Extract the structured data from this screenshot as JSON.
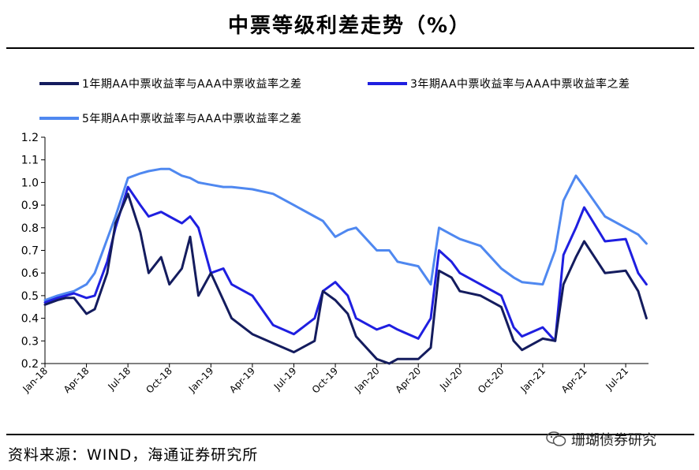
{
  "title": "中票等级利差走势（%）",
  "source": "资料来源：WIND，海通证券研究所",
  "watermark": "珊瑚债券研究",
  "colors": {
    "s1": "#141C5E",
    "s2": "#1F1FE0",
    "s3": "#4F88F0"
  },
  "chart_data": {
    "type": "line",
    "title": "中票等级利差走势（%）",
    "ylim": [
      0.2,
      1.2
    ],
    "yticks": [
      "0.2",
      "0.3",
      "0.4",
      "0.5",
      "0.6",
      "0.7",
      "0.8",
      "0.9",
      "1.0",
      "1.1",
      "1.2"
    ],
    "xticks": [
      "Jan-18",
      "Apr-18",
      "Jul-18",
      "Oct-18",
      "Jan-19",
      "Apr-19",
      "Jul-19",
      "Oct-19",
      "Jan-20",
      "Apr-20",
      "Jul-20",
      "Oct-20",
      "Jan-21",
      "Apr-21",
      "Jul-21"
    ],
    "grid": false,
    "legend_position": "top",
    "series": [
      {
        "name": "1年期AA中票收益率与AAA中票收益率之差",
        "x": [
          0,
          0.3,
          0.5,
          0.7,
          1.0,
          1.2,
          1.5,
          1.7,
          2.0,
          2.3,
          2.5,
          2.8,
          3.0,
          3.3,
          3.5,
          3.7,
          4.0,
          4.3,
          4.5,
          5.0,
          5.5,
          6.0,
          6.5,
          6.7,
          7.0,
          7.3,
          7.5,
          8.0,
          8.3,
          8.5,
          9.0,
          9.3,
          9.5,
          9.8,
          10.0,
          10.5,
          11.0,
          11.3,
          11.5,
          12.0,
          12.3,
          12.5,
          12.8,
          13.0,
          13.5,
          14.0,
          14.3,
          14.5
        ],
        "values": [
          0.46,
          0.48,
          0.49,
          0.49,
          0.42,
          0.44,
          0.6,
          0.82,
          0.95,
          0.78,
          0.6,
          0.67,
          0.55,
          0.62,
          0.76,
          0.5,
          0.6,
          0.48,
          0.4,
          0.33,
          0.29,
          0.25,
          0.3,
          0.52,
          0.48,
          0.42,
          0.32,
          0.22,
          0.2,
          0.22,
          0.22,
          0.27,
          0.61,
          0.58,
          0.52,
          0.5,
          0.45,
          0.3,
          0.26,
          0.31,
          0.3,
          0.55,
          0.67,
          0.74,
          0.6,
          0.61,
          0.52,
          0.4
        ]
      },
      {
        "name": "3年期AA中票收益率与AAA中票收益率之差",
        "x": [
          0,
          0.3,
          0.5,
          0.7,
          1.0,
          1.2,
          1.5,
          1.7,
          2.0,
          2.3,
          2.5,
          2.8,
          3.0,
          3.3,
          3.5,
          3.7,
          4.0,
          4.3,
          4.5,
          5.0,
          5.5,
          6.0,
          6.5,
          6.7,
          7.0,
          7.3,
          7.5,
          8.0,
          8.3,
          8.5,
          9.0,
          9.3,
          9.5,
          9.8,
          10.0,
          10.5,
          11.0,
          11.3,
          11.5,
          12.0,
          12.3,
          12.5,
          12.8,
          13.0,
          13.5,
          14.0,
          14.3,
          14.5
        ],
        "values": [
          0.47,
          0.49,
          0.5,
          0.51,
          0.49,
          0.5,
          0.65,
          0.8,
          0.98,
          0.9,
          0.85,
          0.87,
          0.85,
          0.82,
          0.85,
          0.8,
          0.6,
          0.62,
          0.55,
          0.5,
          0.37,
          0.33,
          0.4,
          0.52,
          0.56,
          0.5,
          0.4,
          0.35,
          0.37,
          0.35,
          0.31,
          0.4,
          0.7,
          0.65,
          0.6,
          0.55,
          0.5,
          0.36,
          0.32,
          0.36,
          0.3,
          0.68,
          0.8,
          0.89,
          0.74,
          0.75,
          0.6,
          0.55
        ]
      },
      {
        "name": "5年期AA中票收益率与AAA中票收益率之差",
        "x": [
          0,
          0.3,
          0.5,
          0.7,
          1.0,
          1.2,
          1.5,
          1.7,
          2.0,
          2.3,
          2.5,
          2.8,
          3.0,
          3.3,
          3.5,
          3.7,
          4.0,
          4.3,
          4.5,
          5.0,
          5.5,
          6.0,
          6.5,
          6.7,
          7.0,
          7.3,
          7.5,
          8.0,
          8.3,
          8.5,
          9.0,
          9.3,
          9.5,
          9.8,
          10.0,
          10.5,
          11.0,
          11.3,
          11.5,
          12.0,
          12.3,
          12.5,
          12.8,
          13.0,
          13.5,
          14.0,
          14.3,
          14.5
        ],
        "values": [
          0.48,
          0.5,
          0.51,
          0.52,
          0.55,
          0.6,
          0.75,
          0.85,
          1.02,
          1.04,
          1.05,
          1.06,
          1.06,
          1.03,
          1.02,
          1.0,
          0.99,
          0.98,
          0.98,
          0.97,
          0.95,
          0.9,
          0.85,
          0.83,
          0.76,
          0.79,
          0.8,
          0.7,
          0.7,
          0.65,
          0.63,
          0.55,
          0.8,
          0.77,
          0.75,
          0.72,
          0.62,
          0.58,
          0.56,
          0.55,
          0.7,
          0.92,
          1.03,
          0.98,
          0.85,
          0.8,
          0.77,
          0.73
        ]
      }
    ]
  }
}
